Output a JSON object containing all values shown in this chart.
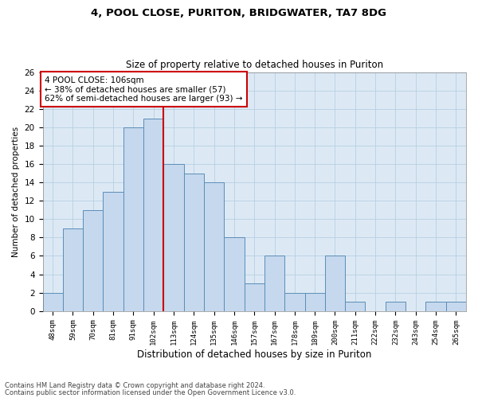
{
  "title1": "4, POOL CLOSE, PURITON, BRIDGWATER, TA7 8DG",
  "title2": "Size of property relative to detached houses in Puriton",
  "xlabel": "Distribution of detached houses by size in Puriton",
  "ylabel": "Number of detached properties",
  "categories": [
    "48sqm",
    "59sqm",
    "70sqm",
    "81sqm",
    "91sqm",
    "102sqm",
    "113sqm",
    "124sqm",
    "135sqm",
    "146sqm",
    "157sqm",
    "167sqm",
    "178sqm",
    "189sqm",
    "200sqm",
    "211sqm",
    "222sqm",
    "232sqm",
    "243sqm",
    "254sqm",
    "265sqm"
  ],
  "values": [
    2,
    9,
    11,
    13,
    20,
    21,
    16,
    15,
    14,
    8,
    3,
    6,
    2,
    2,
    6,
    1,
    0,
    1,
    0,
    1,
    1
  ],
  "bar_color": "#c5d8ed",
  "bar_edge_color": "#5b8db8",
  "red_line_x": 5.5,
  "annotation_text": "4 POOL CLOSE: 106sqm\n← 38% of detached houses are smaller (57)\n62% of semi-detached houses are larger (93) →",
  "annotation_box_color": "#ffffff",
  "annotation_box_edge": "#cc0000",
  "red_line_color": "#cc0000",
  "ylim": [
    0,
    26
  ],
  "yticks": [
    0,
    2,
    4,
    6,
    8,
    10,
    12,
    14,
    16,
    18,
    20,
    22,
    24,
    26
  ],
  "grid_color": "#b8cfe0",
  "bg_color": "#dce9f5",
  "footer1": "Contains HM Land Registry data © Crown copyright and database right 2024.",
  "footer2": "Contains public sector information licensed under the Open Government Licence v3.0."
}
